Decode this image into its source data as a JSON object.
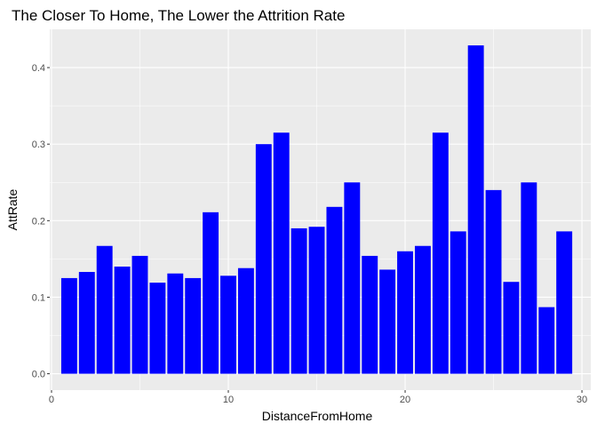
{
  "chart_data": {
    "type": "bar",
    "title": "The Closer To Home, The Lower the Attrition Rate",
    "xlabel": "DistanceFromHome",
    "ylabel": "AttRate",
    "x": [
      1,
      2,
      3,
      4,
      5,
      6,
      7,
      8,
      9,
      10,
      11,
      12,
      13,
      14,
      15,
      16,
      17,
      18,
      19,
      20,
      21,
      22,
      23,
      24,
      25,
      26,
      27,
      28,
      29
    ],
    "values": [
      0.125,
      0.133,
      0.167,
      0.14,
      0.154,
      0.119,
      0.131,
      0.125,
      0.211,
      0.128,
      0.138,
      0.3,
      0.315,
      0.19,
      0.192,
      0.218,
      0.25,
      0.154,
      0.136,
      0.16,
      0.167,
      0.315,
      0.186,
      0.429,
      0.24,
      0.12,
      0.25,
      0.087,
      0.186
    ],
    "xlim": [
      -0.1,
      30.5
    ],
    "ylim": [
      -0.0214,
      0.45
    ],
    "xticks": [
      0,
      10,
      20,
      30
    ],
    "yticks": [
      0.0,
      0.1,
      0.2,
      0.3,
      0.4
    ],
    "xtick_labels": [
      "0",
      "10",
      "20",
      "30"
    ],
    "ytick_labels": [
      "0.0",
      "0.1",
      "0.2",
      "0.3",
      "0.4"
    ],
    "grid": true,
    "bar_color": "#0000ff",
    "panel_color": "#ebebeb",
    "grid_color": "#ffffff"
  }
}
